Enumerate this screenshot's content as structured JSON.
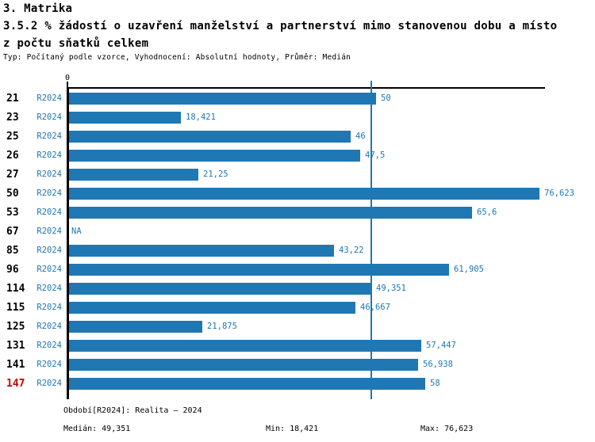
{
  "header": {
    "section_title": "3. Matrika",
    "indicator_title_line1": "3.5.2 % žádostí o uzavření manželství a partnerství mimo stanovenou dobu a místo",
    "indicator_title_line2": "z počtu sňatků celkem",
    "meta_line": "Typ: Počítaný podle vzorce, Vyhodnocení: Absolutní hodnoty, Průměr: Medián"
  },
  "colors": {
    "bar_blue": "#1f77b4",
    "text_blue": "#1f77b4",
    "highlight_red": "#cc0000",
    "axis_black": "#000000"
  },
  "chart_data": {
    "type": "bar",
    "orientation": "horizontal",
    "axis_zero_label": "0",
    "xlim": [
      0,
      77.2
    ],
    "grid": false,
    "median_value": 49.351,
    "period_label": "R2024",
    "rows": [
      {
        "region": "21",
        "period": "R2024",
        "value": 50,
        "label": "50",
        "highlight": false
      },
      {
        "region": "23",
        "period": "R2024",
        "value": 18.421,
        "label": "18,421",
        "highlight": false
      },
      {
        "region": "25",
        "period": "R2024",
        "value": 46,
        "label": "46",
        "highlight": false
      },
      {
        "region": "26",
        "period": "R2024",
        "value": 47.5,
        "label": "47,5",
        "highlight": false
      },
      {
        "region": "27",
        "period": "R2024",
        "value": 21.25,
        "label": "21,25",
        "highlight": false
      },
      {
        "region": "50",
        "period": "R2024",
        "value": 76.623,
        "label": "76,623",
        "highlight": false
      },
      {
        "region": "53",
        "period": "R2024",
        "value": 65.6,
        "label": "65,6",
        "highlight": false
      },
      {
        "region": "67",
        "period": "R2024",
        "value": null,
        "label": "NA",
        "highlight": false
      },
      {
        "region": "85",
        "period": "R2024",
        "value": 43.22,
        "label": "43,22",
        "highlight": false
      },
      {
        "region": "96",
        "period": "R2024",
        "value": 61.905,
        "label": "61,905",
        "highlight": false
      },
      {
        "region": "114",
        "period": "R2024",
        "value": 49.351,
        "label": "49,351",
        "highlight": false
      },
      {
        "region": "115",
        "period": "R2024",
        "value": 46.667,
        "label": "46,667",
        "highlight": false
      },
      {
        "region": "125",
        "period": "R2024",
        "value": 21.875,
        "label": "21,875",
        "highlight": false
      },
      {
        "region": "131",
        "period": "R2024",
        "value": 57.447,
        "label": "57,447",
        "highlight": false
      },
      {
        "region": "141",
        "period": "R2024",
        "value": 56.938,
        "label": "56,938",
        "highlight": false
      },
      {
        "region": "147",
        "period": "R2024",
        "value": 58,
        "label": "58",
        "highlight": true
      }
    ]
  },
  "footer": {
    "period_line": "Období[R2024]: Realita – 2024",
    "median_line": "Medián: 49,351",
    "min_line": "Min: 18,421",
    "max_line": "Max: 76,623"
  }
}
